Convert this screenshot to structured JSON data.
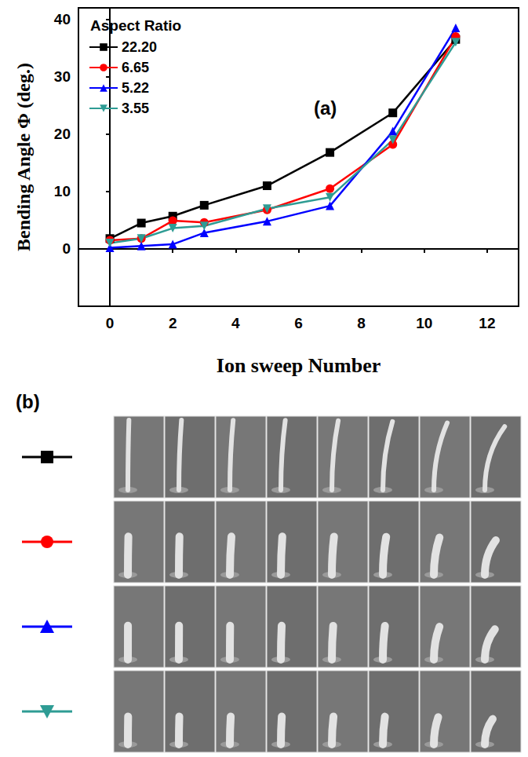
{
  "chart_data": {
    "type": "line",
    "panel_label": "(a)",
    "xlabel": "Ion sweep Number",
    "ylabel": "Bending Angle Φ (deg.)",
    "legend_title": "Aspect Ratio",
    "legend": "upper left",
    "grid": false,
    "x": [
      0,
      1,
      2,
      3,
      5,
      7,
      9,
      11
    ],
    "xlim": [
      -1,
      13
    ],
    "xticks": [
      0,
      2,
      4,
      6,
      8,
      10,
      12
    ],
    "ylim": [
      -10,
      42
    ],
    "yticks": [
      0,
      10,
      20,
      30,
      40
    ],
    "series": [
      {
        "name": "22.20",
        "color": "#000000",
        "marker": "square",
        "values": [
          1.8,
          4.5,
          5.7,
          7.6,
          11.0,
          16.8,
          23.7,
          36.5
        ]
      },
      {
        "name": "6.65",
        "color": "#ff0000",
        "marker": "circle",
        "values": [
          1.5,
          1.8,
          4.9,
          4.6,
          6.8,
          10.5,
          18.2,
          37.0
        ]
      },
      {
        "name": "5.22",
        "color": "#0000ff",
        "marker": "triangle_up",
        "values": [
          0.2,
          0.5,
          0.8,
          2.8,
          4.8,
          7.5,
          20.5,
          38.5
        ]
      },
      {
        "name": "3.55",
        "color": "#2e9c94",
        "marker": "triangle_down",
        "values": [
          1.0,
          1.8,
          3.6,
          4.0,
          7.0,
          9.0,
          19.0,
          36.0
        ]
      }
    ]
  },
  "panel_b": {
    "label": "(b)"
  }
}
